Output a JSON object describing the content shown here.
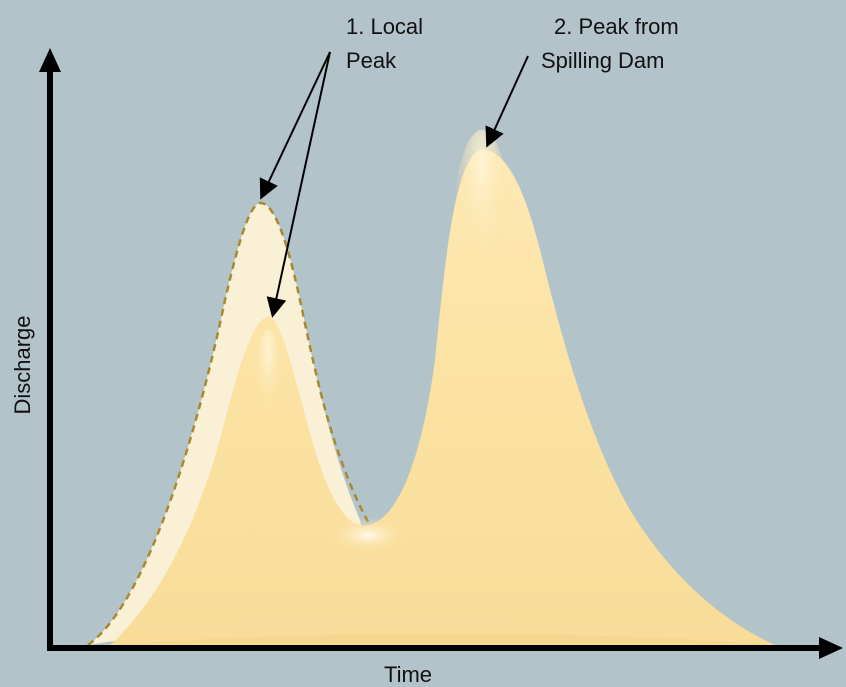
{
  "axes": {
    "x_label": "Time",
    "y_label": "Discharge"
  },
  "annotations": {
    "local_peak": {
      "line1": "1. Local",
      "line2": "Peak"
    },
    "dam_peak": {
      "line1": "2. Peak from",
      "line2": "Spilling Dam"
    }
  },
  "colors": {
    "background": "#b3c3ca",
    "hydrograph_fill": "#fbe2a2",
    "hydrograph_highlight": "#fff3cf",
    "natural_peak_fill": "#fdf2d6",
    "dashed_outline": "#a88a2e",
    "axis": "#000000"
  },
  "icons": [
    "arrow-head-icon"
  ]
}
